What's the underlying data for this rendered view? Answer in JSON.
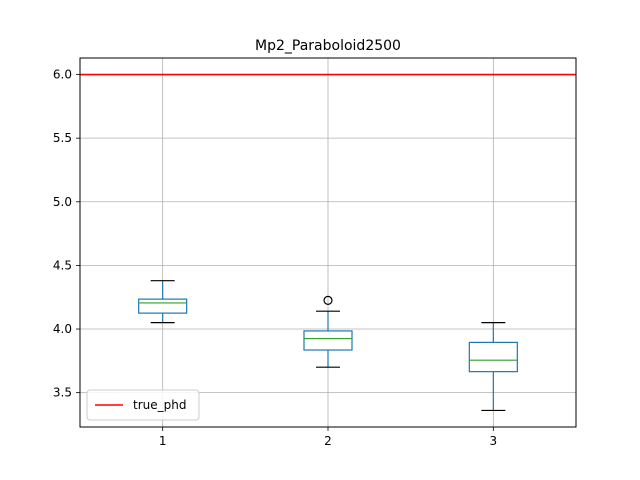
{
  "chart_data": {
    "type": "box",
    "title": "Mp2_Paraboloid2500",
    "xlabel": "",
    "ylabel": "",
    "categories": [
      "1",
      "2",
      "3"
    ],
    "boxes": [
      {
        "category": "1",
        "whisker_low": 4.05,
        "q1": 4.125,
        "median": 4.205,
        "q3": 4.235,
        "whisker_high": 4.38,
        "outliers": []
      },
      {
        "category": "2",
        "whisker_low": 3.7,
        "q1": 3.835,
        "median": 3.925,
        "q3": 3.985,
        "whisker_high": 4.14,
        "outliers": [
          4.225
        ]
      },
      {
        "category": "3",
        "whisker_low": 3.36,
        "q1": 3.665,
        "median": 3.755,
        "q3": 3.895,
        "whisker_high": 4.05,
        "outliers": []
      }
    ],
    "reference_lines": [
      {
        "name": "true_phd",
        "y": 6.0,
        "color": "#ff0000"
      }
    ],
    "ylim": [
      3.23,
      6.13
    ],
    "yticks": [
      3.5,
      4.0,
      4.5,
      5.0,
      5.5,
      6.0
    ],
    "ytick_labels": [
      "3.5",
      "4.0",
      "4.5",
      "5.0",
      "5.5",
      "6.0"
    ],
    "grid": true,
    "legend": {
      "placement": "lower-left",
      "entries": [
        "true_phd"
      ]
    },
    "colors": {
      "box": "#1f77b4",
      "median": "#2ca02c",
      "whisker": "#1f77b4",
      "cap": "#000000",
      "grid": "#b0b0b0"
    }
  }
}
